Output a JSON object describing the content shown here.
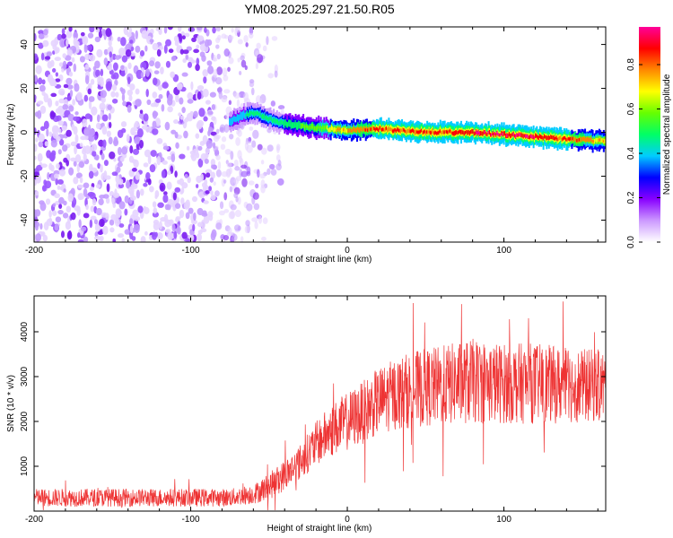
{
  "title": "YM08.2025.297.21.50.R05",
  "chart_data": [
    {
      "type": "heatmap",
      "xlabel": "Height of straight line (km)",
      "ylabel": "Frequency (Hz)",
      "xlim": [
        -200,
        165
      ],
      "ylim": [
        -50,
        48
      ],
      "xticks": [
        -200,
        -100,
        0,
        100
      ],
      "yticks": [
        -40,
        -20,
        0,
        20,
        40
      ],
      "colorbar": {
        "label": "Normalized spectral amplitude",
        "ticks": [
          0.0,
          0.2,
          0.4,
          0.6,
          0.8
        ],
        "tick_labels": [
          "0.0",
          "0.2",
          "0.4",
          "0.6",
          "0.8"
        ],
        "colors": [
          "#ffffff",
          "#cc99ff",
          "#8800ff",
          "#0000ff",
          "#00ccff",
          "#00ff66",
          "#66ff00",
          "#ffff00",
          "#ff8800",
          "#ff0000",
          "#ff0099"
        ]
      },
      "noise_region": {
        "x_start": -200,
        "x_end": -45,
        "value": 0.15
      },
      "ridge": {
        "x": [
          -75,
          -65,
          -58,
          -50,
          -40,
          -20,
          0,
          20,
          40,
          60,
          80,
          100,
          120,
          140,
          165
        ],
        "freq": [
          5,
          8,
          9,
          6,
          4,
          2,
          1,
          1.5,
          0.5,
          0,
          0,
          -1,
          -2,
          -3,
          -4
        ],
        "amplitude": [
          0.35,
          0.45,
          0.5,
          0.45,
          0.5,
          0.6,
          0.75,
          0.85,
          0.85,
          0.85,
          0.9,
          0.9,
          0.9,
          0.85,
          0.7
        ]
      }
    },
    {
      "type": "line",
      "xlabel": "Height of straight line (km)",
      "ylabel": "SNR (10 * v/v)",
      "xlim": [
        -200,
        165
      ],
      "ylim": [
        0,
        4800
      ],
      "xticks": [
        -200,
        -100,
        0,
        100
      ],
      "yticks": [
        1000,
        2000,
        3000,
        4000
      ],
      "color": "#ee3333",
      "envelope": {
        "x": [
          -200,
          -150,
          -100,
          -75,
          -60,
          -50,
          -40,
          -30,
          -20,
          -10,
          0,
          10,
          20,
          30,
          40,
          60,
          80,
          100,
          120,
          140,
          165
        ],
        "mean": [
          300,
          300,
          300,
          300,
          380,
          550,
          800,
          1100,
          1500,
          1800,
          2000,
          2200,
          2450,
          2600,
          2700,
          2800,
          2900,
          2850,
          2850,
          2800,
          2800
        ],
        "spread": [
          200,
          200,
          200,
          200,
          220,
          300,
          350,
          400,
          500,
          600,
          650,
          700,
          750,
          800,
          850,
          900,
          950,
          900,
          900,
          850,
          800
        ]
      }
    }
  ]
}
